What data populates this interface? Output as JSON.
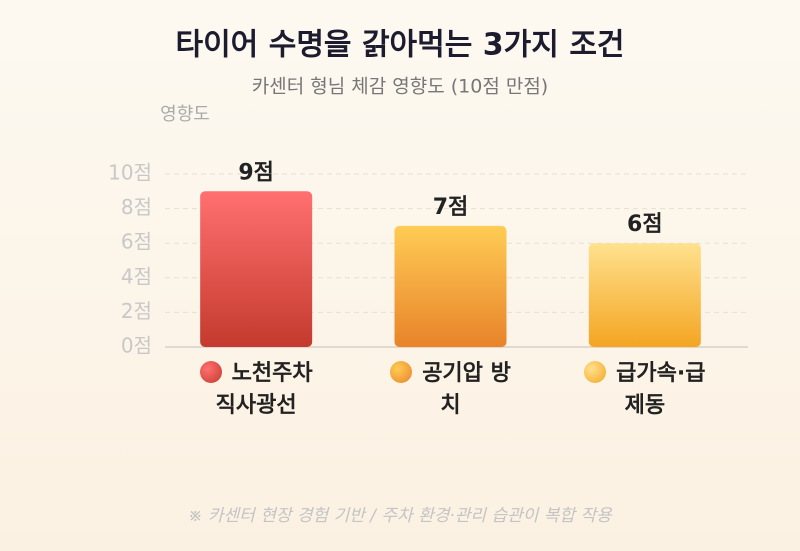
{
  "chart_data": {
    "type": "bar",
    "title": "타이어 수명을 갉아먹는 3가지 조건",
    "subtitle": "카센터 형님 체감 영향도 (10점 만점)",
    "y_label": "영향도",
    "categories": [
      "노천주차 직사광선",
      "공기압 방치",
      "급가속·급제동"
    ],
    "values": [
      9,
      7,
      6
    ],
    "value_labels": [
      "9점",
      "7점",
      "6점"
    ],
    "colors": [
      [
        "#ff7070",
        "#c43a2e"
      ],
      [
        "#ffcc55",
        "#e8832a"
      ],
      [
        "#ffe18e",
        "#f4a522"
      ]
    ],
    "ylim": [
      0,
      10
    ],
    "yticks": [
      {
        "value": 0,
        "label": "0점"
      },
      {
        "value": 2,
        "label": "2점"
      },
      {
        "value": 4,
        "label": "4점"
      },
      {
        "value": 6,
        "label": "6점"
      },
      {
        "value": 8,
        "label": "8점"
      },
      {
        "value": 10,
        "label": "10점"
      }
    ],
    "grid": true,
    "footnote": "※ 카센터 현장 경험 기반 / 주차 환경·관리 습관이 복합 작용"
  }
}
